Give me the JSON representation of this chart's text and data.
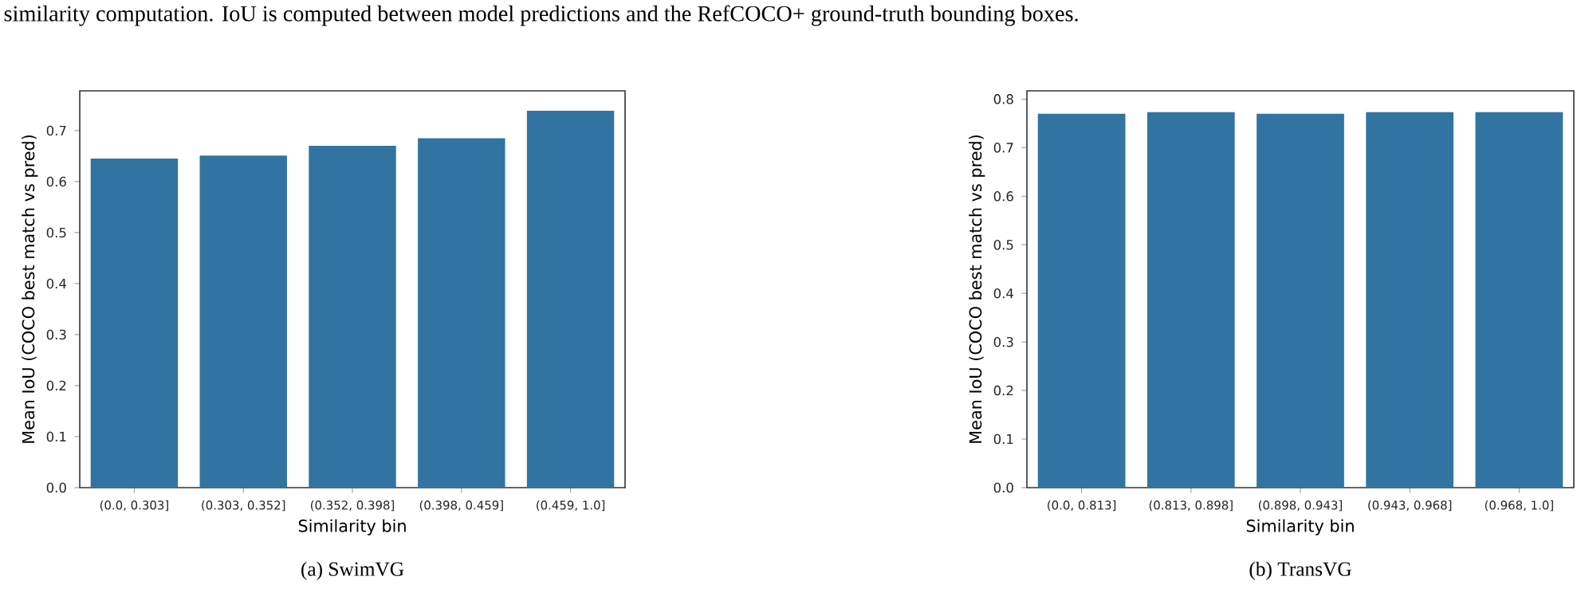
{
  "chart_data": [
    {
      "type": "bar",
      "title": "(a) SwimVG",
      "xlabel": "Similarity bin",
      "ylabel": "Mean IoU (COCO best match vs pred)",
      "categories": [
        "(0.0, 0.303]",
        "(0.303, 0.352]",
        "(0.352, 0.398]",
        "(0.398, 0.459]",
        "(0.459, 1.0]"
      ],
      "values": [
        0.645,
        0.651,
        0.67,
        0.685,
        0.739
      ],
      "color": "#3274a1",
      "ylim": [
        0,
        0.778
      ],
      "yticks": [
        {
          "value": 0,
          "label": "0.0"
        },
        0.1,
        0.2,
        0.3,
        0.4,
        0.5,
        0.6,
        0.7
      ],
      "annotations": [
        "similarity computation. IoU is computed between model predictions and the RefCOCO+ ground-truth bounding boxes."
      ]
    },
    {
      "type": "bar",
      "title": "(b) TransVG",
      "xlabel": "Similarity bin",
      "ylabel": "Mean IoU (COCO best match vs pred)",
      "categories": [
        "(0.0, 0.813]",
        "(0.813, 0.898]",
        "(0.898, 0.943]",
        "(0.943, 0.968]",
        "(0.968, 1.0]"
      ],
      "values": [
        0.77,
        0.773,
        0.77,
        0.773,
        0.773
      ],
      "color": "#3274a1",
      "ylim": [
        0,
        0.817
      ],
      "yticks": [
        {
          "value": 0,
          "label": "0.0"
        },
        0.1,
        0.2,
        0.3,
        0.4,
        0.5,
        0.6,
        0.7,
        0.8
      ]
    }
  ]
}
